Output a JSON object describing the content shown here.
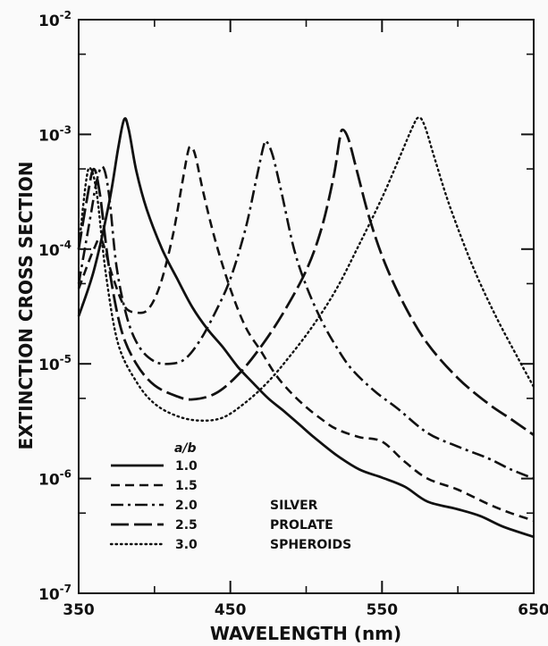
{
  "chart_data": {
    "type": "line",
    "xlabel": "WAVELENGTH (nm)",
    "ylabel": "EXTINCTION CROSS SECTION",
    "xlim": [
      350,
      650
    ],
    "ylim": [
      1e-07,
      0.01
    ],
    "yscale": "log",
    "x_ticks": [
      350,
      450,
      550,
      650
    ],
    "x_tick_labels": [
      "350",
      "450",
      "550",
      "650"
    ],
    "y_ticks": [
      1e-07,
      1e-06,
      1e-05,
      0.0001,
      0.001,
      0.01
    ],
    "y_tick_labels": [
      {
        "base": "10",
        "exp": "-7"
      },
      {
        "base": "10",
        "exp": "-6"
      },
      {
        "base": "10",
        "exp": "-5"
      },
      {
        "base": "10",
        "exp": "-4"
      },
      {
        "base": "10",
        "exp": "-3"
      },
      {
        "base": "10",
        "exp": "-2"
      }
    ],
    "grid": false,
    "legend": {
      "placement": "bottom-left",
      "header": "a/b",
      "annotation": [
        "SILVER",
        "PROLATE",
        "SPHEROIDS"
      ]
    },
    "series": [
      {
        "name": "1.0",
        "dash": "solid",
        "points": [
          [
            350,
            2.6e-05
          ],
          [
            360,
            6.5e-05
          ],
          [
            370,
            0.00025
          ],
          [
            376,
            0.00075
          ],
          [
            380,
            0.00135
          ],
          [
            383,
            0.0011
          ],
          [
            388,
            0.00048
          ],
          [
            395,
            0.00022
          ],
          [
            405,
            0.0001
          ],
          [
            415,
            5.5e-05
          ],
          [
            425,
            3.1e-05
          ],
          [
            435,
            2e-05
          ],
          [
            445,
            1.4e-05
          ],
          [
            455,
            9.4e-06
          ],
          [
            465,
            6.8e-06
          ],
          [
            475,
            5e-06
          ],
          [
            485,
            3.9e-06
          ],
          [
            495,
            3e-06
          ],
          [
            505,
            2.3e-06
          ],
          [
            520,
            1.6e-06
          ],
          [
            535,
            1.2e-06
          ],
          [
            550,
            1.02e-06
          ],
          [
            565,
            8.5e-07
          ],
          [
            580,
            6.3e-07
          ],
          [
            600,
            5.4e-07
          ],
          [
            615,
            4.7e-07
          ],
          [
            630,
            3.8e-07
          ],
          [
            650,
            3.1e-07
          ]
        ]
      },
      {
        "name": "1.5",
        "dash": "dash",
        "points": [
          [
            350,
            4.5e-05
          ],
          [
            360,
            0.0001
          ],
          [
            365,
            0.00012
          ],
          [
            372,
            6e-05
          ],
          [
            380,
            3.2e-05
          ],
          [
            388,
            2.8e-05
          ],
          [
            396,
            3e-05
          ],
          [
            404,
            5e-05
          ],
          [
            412,
            0.00013
          ],
          [
            418,
            0.00036
          ],
          [
            422,
            0.0007
          ],
          [
            424,
            0.00078
          ],
          [
            427,
            0.00065
          ],
          [
            432,
            0.00032
          ],
          [
            440,
            0.00012
          ],
          [
            450,
            4.5e-05
          ],
          [
            460,
            2.1e-05
          ],
          [
            470,
            1.3e-05
          ],
          [
            480,
            8e-06
          ],
          [
            490,
            5.6e-06
          ],
          [
            500,
            4.2e-06
          ],
          [
            510,
            3.3e-06
          ],
          [
            520,
            2.7e-06
          ],
          [
            535,
            2.3e-06
          ],
          [
            550,
            2.1e-06
          ],
          [
            565,
            1.4e-06
          ],
          [
            580,
            1e-06
          ],
          [
            600,
            8e-07
          ],
          [
            620,
            6e-07
          ],
          [
            635,
            5e-07
          ],
          [
            650,
            4.3e-07
          ]
        ]
      },
      {
        "name": "2.0",
        "dash": "dashdot",
        "points": [
          [
            350,
            5e-05
          ],
          [
            358,
            0.0002
          ],
          [
            362,
            0.0004
          ],
          [
            366,
            0.00052
          ],
          [
            370,
            0.0003
          ],
          [
            375,
            7e-05
          ],
          [
            382,
            2.5e-05
          ],
          [
            390,
            1.4e-05
          ],
          [
            400,
            1.05e-05
          ],
          [
            410,
            1e-05
          ],
          [
            420,
            1.1e-05
          ],
          [
            430,
            1.6e-05
          ],
          [
            440,
            2.8e-05
          ],
          [
            450,
            5.5e-05
          ],
          [
            460,
            0.00015
          ],
          [
            467,
            0.0004
          ],
          [
            472,
            0.0008
          ],
          [
            474,
            0.00086
          ],
          [
            478,
            0.00065
          ],
          [
            484,
            0.0003
          ],
          [
            492,
            0.0001
          ],
          [
            500,
            4.8e-05
          ],
          [
            510,
            2.4e-05
          ],
          [
            520,
            1.4e-05
          ],
          [
            530,
            9e-06
          ],
          [
            545,
            5.8e-06
          ],
          [
            560,
            4.1e-06
          ],
          [
            580,
            2.5e-06
          ],
          [
            600,
            1.9e-06
          ],
          [
            620,
            1.5e-06
          ],
          [
            635,
            1.2e-06
          ],
          [
            650,
            1e-06
          ]
        ]
      },
      {
        "name": "2.5",
        "dash": "longdash",
        "points": [
          [
            350,
            0.0001
          ],
          [
            356,
            0.0003
          ],
          [
            360,
            0.0005
          ],
          [
            364,
            0.0003
          ],
          [
            370,
            7e-05
          ],
          [
            378,
            2e-05
          ],
          [
            388,
            1e-05
          ],
          [
            400,
            6.5e-06
          ],
          [
            415,
            5.2e-06
          ],
          [
            425,
            4.9e-06
          ],
          [
            440,
            5.5e-06
          ],
          [
            455,
            8e-06
          ],
          [
            470,
            1.4e-05
          ],
          [
            485,
            2.8e-05
          ],
          [
            500,
            6.5e-05
          ],
          [
            510,
            0.00015
          ],
          [
            518,
            0.00042
          ],
          [
            522,
            0.0009
          ],
          [
            524,
            0.0011
          ],
          [
            528,
            0.0009
          ],
          [
            534,
            0.00045
          ],
          [
            542,
            0.00018
          ],
          [
            552,
            7.5e-05
          ],
          [
            565,
            3.2e-05
          ],
          [
            580,
            1.5e-05
          ],
          [
            600,
            7.5e-06
          ],
          [
            620,
            4.5e-06
          ],
          [
            635,
            3.3e-06
          ],
          [
            650,
            2.4e-06
          ]
        ]
      },
      {
        "name": "3.0",
        "dash": "dot",
        "points": [
          [
            350,
            0.0001
          ],
          [
            355,
            0.0004
          ],
          [
            358,
            0.0005
          ],
          [
            362,
            0.0003
          ],
          [
            368,
            6e-05
          ],
          [
            376,
            1.5e-05
          ],
          [
            388,
            7e-06
          ],
          [
            400,
            4.5e-06
          ],
          [
            415,
            3.5e-06
          ],
          [
            430,
            3.2e-06
          ],
          [
            445,
            3.4e-06
          ],
          [
            460,
            4.6e-06
          ],
          [
            475,
            7e-06
          ],
          [
            490,
            1.2e-05
          ],
          [
            505,
            2.2e-05
          ],
          [
            520,
            4.5e-05
          ],
          [
            535,
            0.00011
          ],
          [
            550,
            0.00028
          ],
          [
            562,
            0.00065
          ],
          [
            570,
            0.00115
          ],
          [
            574,
            0.0014
          ],
          [
            578,
            0.0012
          ],
          [
            585,
            0.0006
          ],
          [
            595,
            0.00023
          ],
          [
            610,
            7e-05
          ],
          [
            625,
            2.6e-05
          ],
          [
            640,
            1.1e-05
          ],
          [
            650,
            6.3e-06
          ]
        ]
      }
    ]
  }
}
